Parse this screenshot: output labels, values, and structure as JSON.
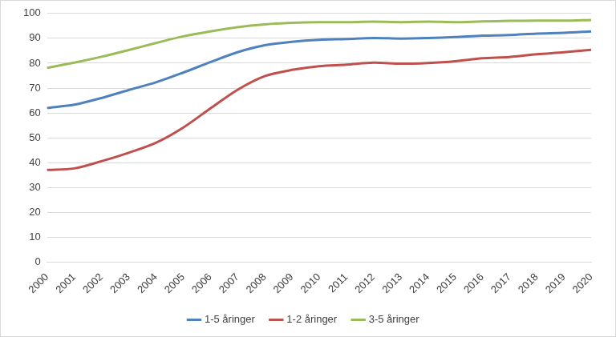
{
  "chart_data": {
    "type": "line",
    "categories": [
      "2000",
      "2001",
      "2002",
      "2003",
      "2004",
      "2005",
      "2006",
      "2007",
      "2008",
      "2009",
      "2010",
      "2011",
      "2012",
      "2013",
      "2014",
      "2015",
      "2016",
      "2017",
      "2018",
      "2019",
      "2020"
    ],
    "series": [
      {
        "name": "1-5 åringer",
        "color": "#4f81bd",
        "values": [
          62,
          63.3,
          66,
          69.2,
          72.3,
          76.2,
          80.4,
          84.4,
          87.2,
          88.6,
          89.4,
          89.7,
          90.1,
          89.9,
          90.1,
          90.5,
          91.1,
          91.3,
          91.9,
          92.2,
          92.8
        ]
      },
      {
        "name": "1-2 åringer",
        "color": "#c0504d",
        "values": [
          37.1,
          37.7,
          40.6,
          44,
          48,
          54.1,
          61.8,
          69.3,
          74.8,
          77.3,
          78.8,
          79.4,
          80.2,
          79.8,
          80.1,
          80.8,
          82,
          82.5,
          83.6,
          84.4,
          85.4
        ]
      },
      {
        "name": "3-5 åringer",
        "color": "#9bbb59",
        "values": [
          78.1,
          80.2,
          82.6,
          85.3,
          88.1,
          90.8,
          92.8,
          94.5,
          95.6,
          96.2,
          96.5,
          96.5,
          96.7,
          96.5,
          96.7,
          96.5,
          96.8,
          97,
          97.1,
          97.1,
          97.4
        ]
      }
    ],
    "ylim": [
      0,
      100
    ],
    "yticks": [
      0,
      10,
      20,
      30,
      40,
      50,
      60,
      70,
      80,
      90,
      100
    ],
    "grid": true,
    "legend": "bottom"
  }
}
